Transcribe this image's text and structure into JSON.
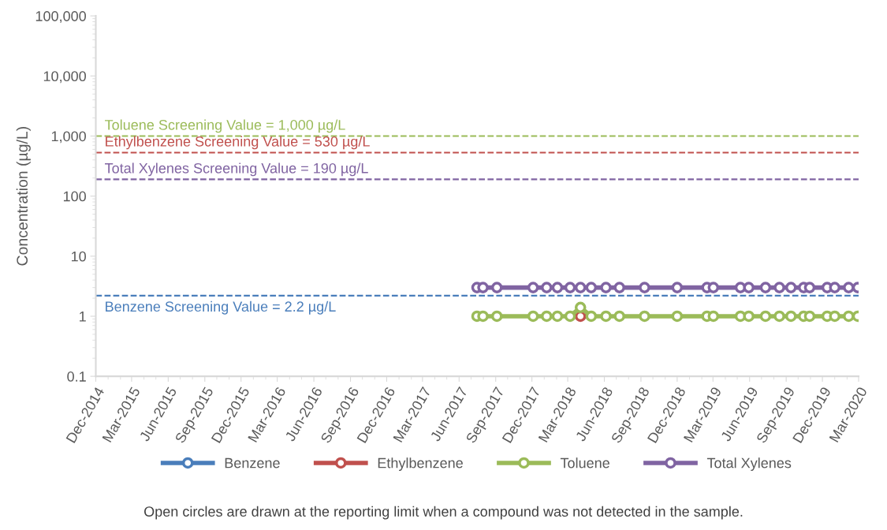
{
  "chart_data": {
    "type": "line",
    "ylabel": "Concentration (µg/L)",
    "log": "y",
    "marker": "circle",
    "line_style": "solid",
    "legend": "bottom",
    "grid": false,
    "xlim": [
      "2014-12-01",
      "2020-03-01"
    ],
    "xticks": [
      {
        "value": "2014-12-01",
        "label": "Dec-2014"
      },
      {
        "value": "2015-03-01",
        "label": "Mar-2015"
      },
      {
        "value": "2015-06-01",
        "label": "Jun-2015"
      },
      {
        "value": "2015-09-01",
        "label": "Sep-2015"
      },
      {
        "value": "2015-12-01",
        "label": "Dec-2015"
      },
      {
        "value": "2016-03-01",
        "label": "Mar-2016"
      },
      {
        "value": "2016-06-01",
        "label": "Jun-2016"
      },
      {
        "value": "2016-09-01",
        "label": "Sep-2016"
      },
      {
        "value": "2016-12-01",
        "label": "Dec-2016"
      },
      {
        "value": "2017-03-01",
        "label": "Mar-2017"
      },
      {
        "value": "2017-06-01",
        "label": "Jun-2017"
      },
      {
        "value": "2017-09-01",
        "label": "Sep-2017"
      },
      {
        "value": "2017-12-01",
        "label": "Dec-2017"
      },
      {
        "value": "2018-03-01",
        "label": "Mar-2018"
      },
      {
        "value": "2018-06-01",
        "label": "Jun-2018"
      },
      {
        "value": "2018-09-01",
        "label": "Sep-2018"
      },
      {
        "value": "2018-12-01",
        "label": "Dec-2018"
      },
      {
        "value": "2019-03-01",
        "label": "Mar-2019"
      },
      {
        "value": "2019-06-01",
        "label": "Jun-2019"
      },
      {
        "value": "2019-09-01",
        "label": "Sep-2019"
      },
      {
        "value": "2019-12-01",
        "label": "Dec-2019"
      },
      {
        "value": "2020-03-01",
        "label": "Mar-2020"
      }
    ],
    "ylim": [
      0.1,
      100000
    ],
    "yticks": [
      0.1,
      1,
      10,
      100,
      {
        "value": 1000,
        "label": "1,000"
      },
      {
        "value": 10000,
        "label": "10,000"
      },
      {
        "value": 100000,
        "label": "100,000"
      }
    ],
    "x": [
      "2017-07-16",
      "2017-07-31",
      "2017-09-04",
      "2017-12-04",
      "2018-01-07",
      "2018-02-03",
      "2018-03-07",
      "2018-04-02",
      "2018-04-29",
      "2018-06-05",
      "2018-07-09",
      "2018-09-10",
      "2018-12-01",
      "2019-02-14",
      "2019-03-02",
      "2019-05-09",
      "2019-05-30",
      "2019-07-11",
      "2019-08-15",
      "2019-09-13",
      "2019-10-15",
      "2019-10-30",
      "2019-12-13",
      "2020-01-01",
      "2020-02-05",
      "2020-02-28"
    ],
    "series": [
      {
        "name": "Benzene",
        "color": "#4a7ebb",
        "values": [
          null,
          null,
          null,
          null,
          null,
          null,
          null,
          null,
          null,
          null,
          null,
          null,
          null,
          null,
          null,
          null,
          null,
          null,
          null,
          null,
          null,
          null,
          null,
          null,
          null,
          null
        ]
      },
      {
        "name": "Ethylbenzene",
        "color": "#c0504d",
        "x": [
          "2018-04-02"
        ],
        "values": [
          1
        ]
      },
      {
        "name": "Toluene",
        "color": "#9bbb59",
        "values": [
          1,
          1,
          1,
          1,
          1,
          1,
          1,
          1.4,
          1,
          1,
          1,
          1,
          1,
          1,
          1,
          1,
          1,
          1,
          1,
          1,
          1,
          1,
          1,
          1,
          1,
          1
        ]
      },
      {
        "name": "Total Xylenes",
        "color": "#8064a2",
        "values": [
          3,
          3,
          3,
          3,
          3,
          3,
          3,
          3,
          3,
          3,
          3,
          3,
          3,
          3,
          3,
          3,
          3,
          3,
          3,
          3,
          3,
          3,
          3,
          3,
          3,
          3
        ]
      }
    ],
    "ref_lines": [
      {
        "axis": "y",
        "value": 1000,
        "label": "Toluene Screening Value = 1,000 µg/L",
        "color": "#9bbb59",
        "line_style": "dashed"
      },
      {
        "axis": "y",
        "value": 530,
        "label": "Ethylbenzene Screening Value = 530 µg/L",
        "color": "#c0504d",
        "line_style": "dashed"
      },
      {
        "axis": "y",
        "value": 190,
        "label": "Total Xylenes Screening Value = 190 µg/L",
        "color": "#8064a2",
        "line_style": "dashed"
      },
      {
        "axis": "y",
        "value": 2.2,
        "label": "Benzene Screening Value = 2.2 µg/L",
        "color": "#4a7ebb",
        "line_style": "dashed"
      }
    ],
    "annotations": [
      "Open circles are drawn at the reporting limit when a compound was not detected in the sample."
    ]
  }
}
